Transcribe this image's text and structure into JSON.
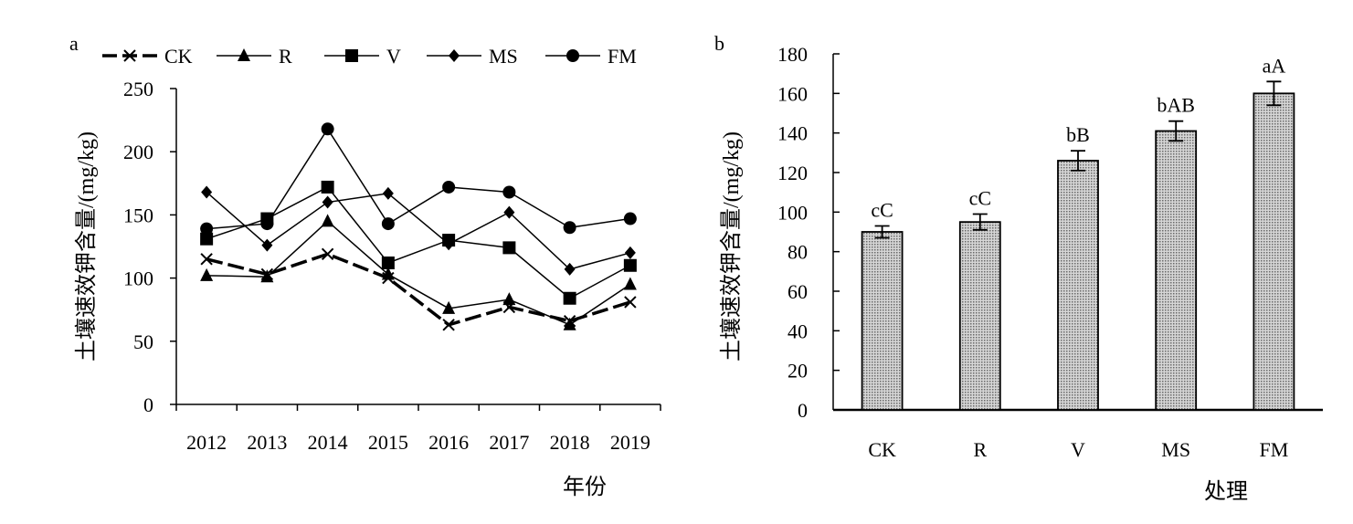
{
  "chart_data": [
    {
      "type": "line",
      "panel_label": "a",
      "xlabel": "年份",
      "ylabel": "土壤速效钾含量/(mg/kg)",
      "ylim": [
        0,
        250
      ],
      "yticks": [
        "0",
        "50",
        "100",
        "150",
        "200",
        "250"
      ],
      "categories": [
        "2012",
        "2013",
        "2014",
        "2015",
        "2016",
        "2017",
        "2018",
        "2019"
      ],
      "legend_position": "top",
      "series": [
        {
          "name": "CK",
          "marker": "x",
          "style": "dashed-bold",
          "values": [
            115,
            103,
            119,
            100,
            63,
            77,
            66,
            81
          ]
        },
        {
          "name": "R",
          "marker": "triangle",
          "style": "solid",
          "values": [
            102,
            101,
            145,
            103,
            76,
            83,
            63,
            95
          ]
        },
        {
          "name": "V",
          "marker": "square",
          "style": "solid",
          "values": [
            131,
            147,
            172,
            112,
            130,
            124,
            84,
            110
          ]
        },
        {
          "name": "MS",
          "marker": "diamond",
          "style": "solid",
          "values": [
            168,
            126,
            160,
            167,
            127,
            152,
            107,
            120
          ]
        },
        {
          "name": "FM",
          "marker": "circle",
          "style": "solid",
          "values": [
            139,
            143,
            218,
            143,
            172,
            168,
            140,
            147
          ]
        }
      ]
    },
    {
      "type": "bar",
      "panel_label": "b",
      "xlabel": "处理",
      "ylabel": "土壤速效钾含量/(mg/kg)",
      "ylim": [
        0,
        180
      ],
      "yticks": [
        "0",
        "20",
        "40",
        "60",
        "80",
        "100",
        "120",
        "140",
        "160",
        "180"
      ],
      "categories": [
        "CK",
        "R",
        "V",
        "MS",
        "FM"
      ],
      "values": [
        90,
        95,
        126,
        141,
        160
      ],
      "errors": [
        3,
        4,
        5,
        5,
        6
      ],
      "labels": [
        "cC",
        "cC",
        "bB",
        "bAB",
        "aA"
      ],
      "bar_color": "#a8a8a8"
    }
  ]
}
